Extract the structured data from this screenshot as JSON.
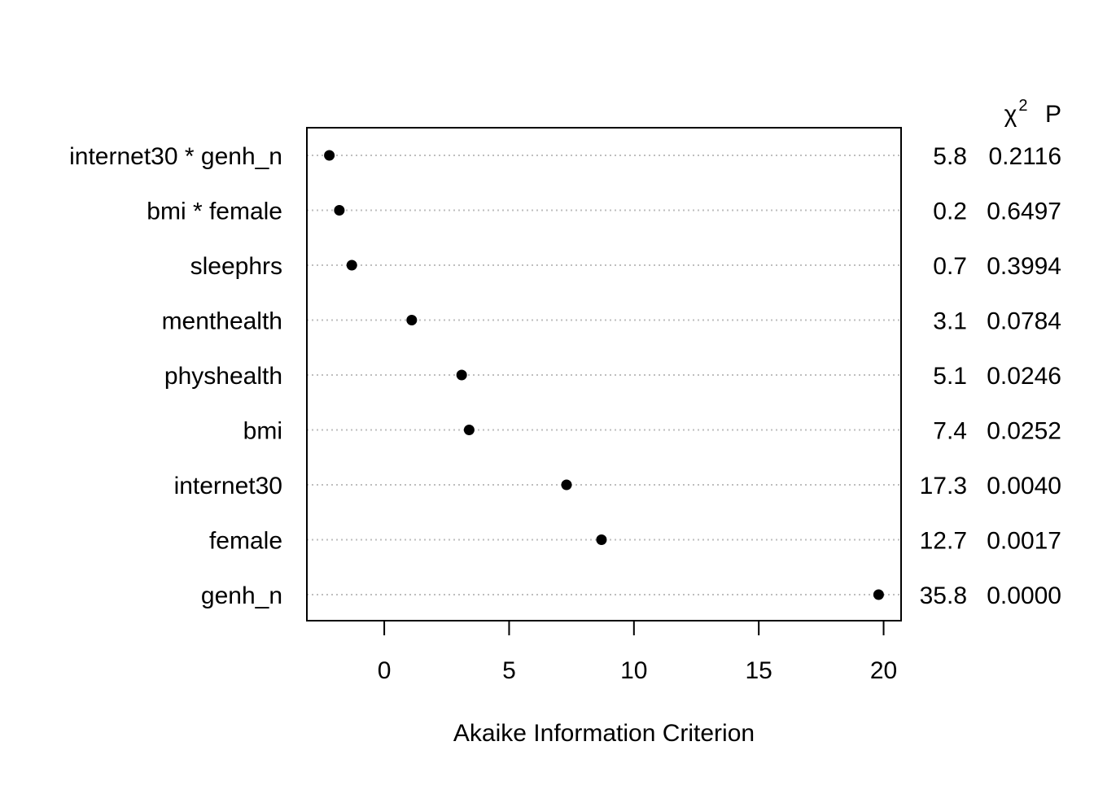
{
  "chart_data": {
    "type": "scatter",
    "xlabel": "Akaike Information Criterion",
    "xticks": [
      0,
      5,
      10,
      15,
      20
    ],
    "xlim": [
      -3.1,
      20.7
    ],
    "grid": "horizontal dotted",
    "column_headers": {
      "chi2_symbol": "χ",
      "chi2_superscript": "2",
      "p": "P"
    },
    "rows": [
      {
        "label": "internet30 * genh_n",
        "aic": -2.2,
        "chi2": "5.8",
        "p": "0.2116"
      },
      {
        "label": "bmi * female",
        "aic": -1.8,
        "chi2": "0.2",
        "p": "0.6497"
      },
      {
        "label": "sleephrs",
        "aic": -1.3,
        "chi2": "0.7",
        "p": "0.3994"
      },
      {
        "label": "menthealth",
        "aic": 1.1,
        "chi2": "3.1",
        "p": "0.0784"
      },
      {
        "label": "physhealth",
        "aic": 3.1,
        "chi2": "5.1",
        "p": "0.0246"
      },
      {
        "label": "bmi",
        "aic": 3.4,
        "chi2": "7.4",
        "p": "0.0252"
      },
      {
        "label": "internet30",
        "aic": 7.3,
        "chi2": "17.3",
        "p": "0.0040"
      },
      {
        "label": "female",
        "aic": 8.7,
        "chi2": "12.7",
        "p": "0.0017"
      },
      {
        "label": "genh_n",
        "aic": 19.8,
        "chi2": "35.8",
        "p": "0.0000"
      }
    ],
    "colors": {
      "point": "#000000",
      "grid": "#bebebe",
      "axis": "#000000"
    }
  }
}
